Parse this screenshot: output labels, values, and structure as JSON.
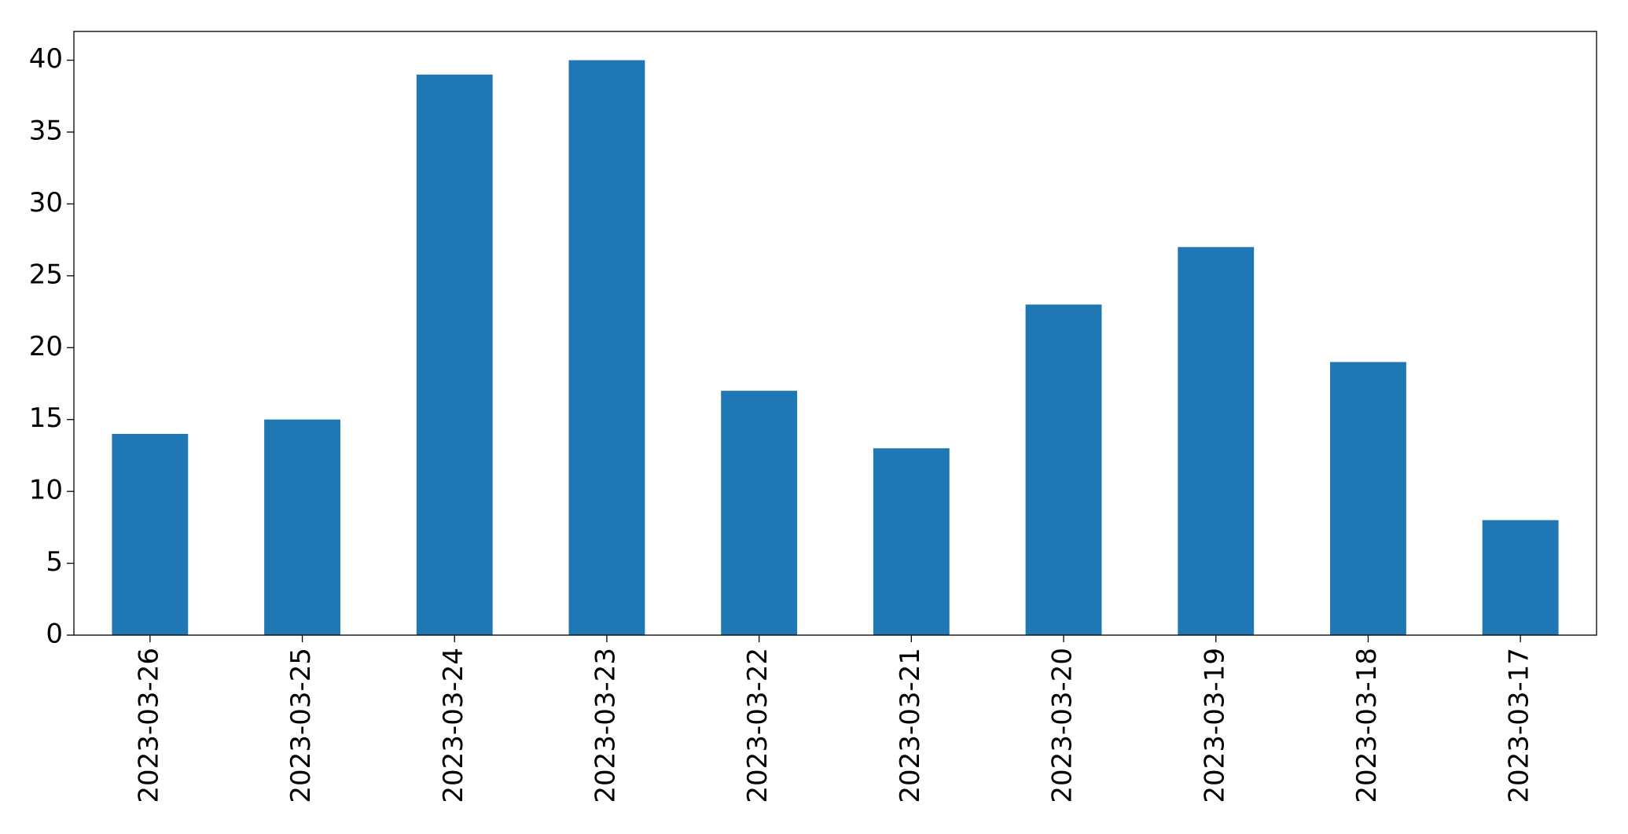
{
  "chart_data": {
    "type": "bar",
    "categories": [
      "2023-03-26",
      "2023-03-25",
      "2023-03-24",
      "2023-03-23",
      "2023-03-22",
      "2023-03-21",
      "2023-03-20",
      "2023-03-19",
      "2023-03-18",
      "2023-03-17"
    ],
    "values": [
      14,
      15,
      39,
      40,
      17,
      13,
      23,
      27,
      19,
      8
    ],
    "color": "#1f77b4",
    "ylim": [
      0,
      42
    ],
    "yticks": [
      0,
      5,
      10,
      15,
      20,
      25,
      30,
      35,
      40
    ],
    "grid": false
  }
}
